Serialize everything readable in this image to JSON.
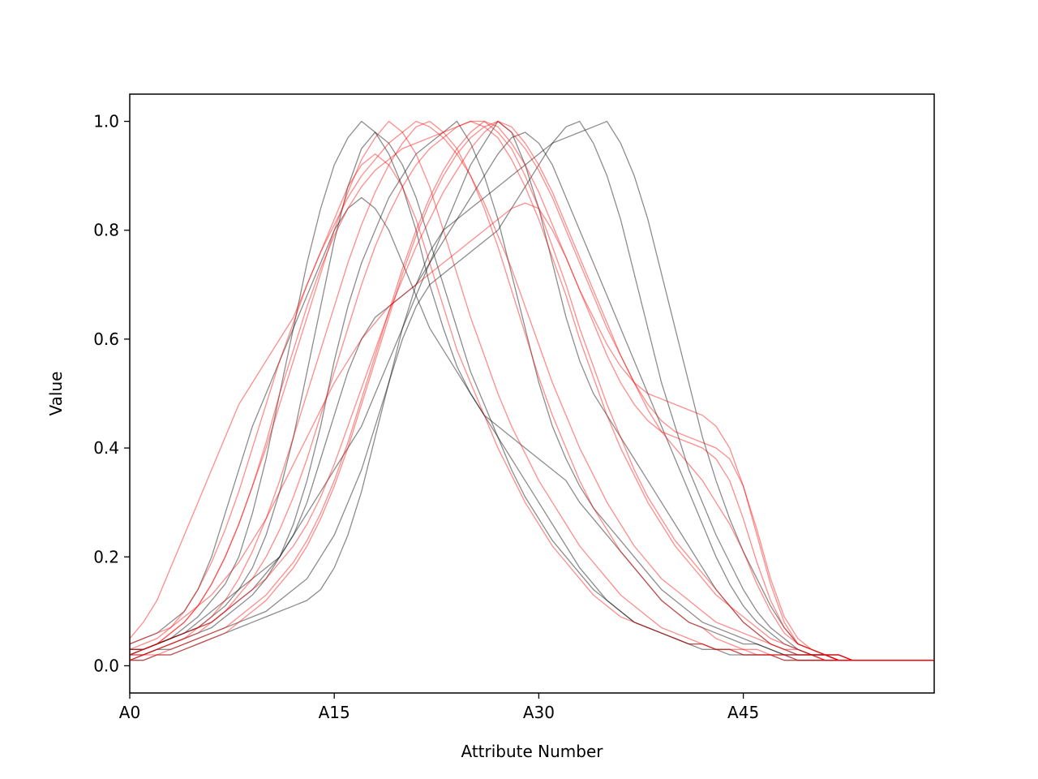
{
  "chart_data": {
    "type": "line",
    "title": "",
    "xlabel": "Attribute Number",
    "ylabel": "Value",
    "x_tick_labels": [
      "A0",
      "A15",
      "A30",
      "A45"
    ],
    "x_tick_positions": [
      0,
      15,
      30,
      45
    ],
    "y_tick_labels": [
      "0.0",
      "0.2",
      "0.4",
      "0.6",
      "0.8",
      "1.0"
    ],
    "y_tick_values": [
      0.0,
      0.2,
      0.4,
      0.6,
      0.8,
      1.0
    ],
    "xlim": [
      0,
      59
    ],
    "ylim": [
      -0.05,
      1.05
    ],
    "grid": false,
    "legend": false,
    "x": [
      0,
      1,
      2,
      3,
      4,
      5,
      6,
      7,
      8,
      9,
      10,
      11,
      12,
      13,
      14,
      15,
      16,
      17,
      18,
      19,
      20,
      21,
      22,
      23,
      24,
      25,
      26,
      27,
      28,
      29,
      30,
      31,
      32,
      33,
      34,
      35,
      36,
      37,
      38,
      39,
      40,
      41,
      42,
      43,
      44,
      45,
      46,
      47,
      48,
      49,
      50,
      51,
      52,
      53,
      54,
      55,
      56,
      57,
      58,
      59
    ],
    "series": [
      {
        "color": "#000000",
        "values": [
          0.02,
          0.03,
          0.04,
          0.05,
          0.07,
          0.09,
          0.12,
          0.15,
          0.2,
          0.28,
          0.38,
          0.5,
          0.62,
          0.74,
          0.84,
          0.92,
          0.97,
          1.0,
          0.98,
          0.94,
          0.88,
          0.8,
          0.7,
          0.62,
          0.55,
          0.5,
          0.46,
          0.44,
          0.42,
          0.4,
          0.38,
          0.36,
          0.34,
          0.3,
          0.27,
          0.24,
          0.21,
          0.18,
          0.15,
          0.12,
          0.1,
          0.08,
          0.07,
          0.06,
          0.05,
          0.04,
          0.04,
          0.03,
          0.02,
          0.02,
          0.02,
          0.02,
          0.01,
          0.01,
          0.01,
          0.01,
          0.01,
          0.01,
          0.01,
          0.01
        ]
      },
      {
        "color": "#000000",
        "values": [
          0.01,
          0.02,
          0.03,
          0.04,
          0.05,
          0.06,
          0.07,
          0.09,
          0.11,
          0.13,
          0.16,
          0.2,
          0.26,
          0.34,
          0.44,
          0.56,
          0.66,
          0.74,
          0.8,
          0.86,
          0.9,
          0.94,
          0.96,
          0.98,
          1.0,
          0.96,
          0.9,
          0.82,
          0.72,
          0.62,
          0.52,
          0.44,
          0.38,
          0.33,
          0.29,
          0.26,
          0.23,
          0.2,
          0.17,
          0.14,
          0.12,
          0.1,
          0.08,
          0.07,
          0.06,
          0.05,
          0.04,
          0.03,
          0.02,
          0.02,
          0.02,
          0.01,
          0.01,
          0.01,
          0.01,
          0.01,
          0.01,
          0.01,
          0.01,
          0.01
        ]
      },
      {
        "color": "#000000",
        "values": [
          0.03,
          0.03,
          0.04,
          0.05,
          0.06,
          0.08,
          0.1,
          0.12,
          0.14,
          0.16,
          0.18,
          0.2,
          0.24,
          0.3,
          0.38,
          0.46,
          0.54,
          0.6,
          0.64,
          0.66,
          0.68,
          0.7,
          0.74,
          0.78,
          0.82,
          0.86,
          0.9,
          0.94,
          0.97,
          0.98,
          0.96,
          0.92,
          0.86,
          0.8,
          0.74,
          0.68,
          0.62,
          0.56,
          0.5,
          0.44,
          0.38,
          0.32,
          0.26,
          0.2,
          0.15,
          0.11,
          0.08,
          0.06,
          0.04,
          0.03,
          0.02,
          0.02,
          0.02,
          0.01,
          0.01,
          0.01,
          0.01,
          0.01,
          0.01,
          0.01
        ]
      },
      {
        "color": "#000000",
        "values": [
          0.02,
          0.02,
          0.03,
          0.03,
          0.04,
          0.05,
          0.06,
          0.07,
          0.08,
          0.09,
          0.1,
          0.12,
          0.14,
          0.16,
          0.2,
          0.24,
          0.3,
          0.36,
          0.44,
          0.52,
          0.6,
          0.66,
          0.7,
          0.72,
          0.74,
          0.76,
          0.78,
          0.8,
          0.84,
          0.88,
          0.92,
          0.96,
          0.99,
          1.0,
          0.96,
          0.9,
          0.82,
          0.72,
          0.62,
          0.52,
          0.44,
          0.36,
          0.3,
          0.24,
          0.19,
          0.14,
          0.1,
          0.07,
          0.05,
          0.03,
          0.02,
          0.02,
          0.01,
          0.01,
          0.01,
          0.01,
          0.01,
          0.01,
          0.01,
          0.01
        ]
      },
      {
        "color": "#000000",
        "values": [
          0.04,
          0.05,
          0.06,
          0.08,
          0.1,
          0.14,
          0.2,
          0.28,
          0.36,
          0.44,
          0.5,
          0.56,
          0.62,
          0.68,
          0.74,
          0.8,
          0.84,
          0.86,
          0.84,
          0.8,
          0.74,
          0.68,
          0.62,
          0.58,
          0.54,
          0.5,
          0.46,
          0.42,
          0.38,
          0.34,
          0.3,
          0.26,
          0.22,
          0.18,
          0.15,
          0.12,
          0.1,
          0.08,
          0.07,
          0.06,
          0.05,
          0.04,
          0.04,
          0.03,
          0.03,
          0.02,
          0.02,
          0.02,
          0.02,
          0.01,
          0.01,
          0.01,
          0.01,
          0.01,
          0.01,
          0.01,
          0.01,
          0.01,
          0.01,
          0.01
        ]
      },
      {
        "color": "#000000",
        "values": [
          0.01,
          0.01,
          0.02,
          0.02,
          0.03,
          0.04,
          0.05,
          0.06,
          0.07,
          0.08,
          0.09,
          0.1,
          0.11,
          0.12,
          0.14,
          0.18,
          0.24,
          0.32,
          0.42,
          0.52,
          0.62,
          0.7,
          0.76,
          0.8,
          0.82,
          0.84,
          0.86,
          0.88,
          0.9,
          0.92,
          0.94,
          0.96,
          0.97,
          0.98,
          0.99,
          1.0,
          0.96,
          0.9,
          0.82,
          0.72,
          0.62,
          0.52,
          0.42,
          0.34,
          0.27,
          0.21,
          0.16,
          0.11,
          0.07,
          0.04,
          0.03,
          0.02,
          0.02,
          0.01,
          0.01,
          0.01,
          0.01,
          0.01,
          0.01,
          0.01
        ]
      },
      {
        "color": "#000000",
        "values": [
          0.02,
          0.03,
          0.04,
          0.05,
          0.06,
          0.07,
          0.09,
          0.11,
          0.14,
          0.18,
          0.24,
          0.32,
          0.42,
          0.54,
          0.66,
          0.78,
          0.88,
          0.95,
          0.98,
          0.96,
          0.92,
          0.86,
          0.78,
          0.7,
          0.62,
          0.54,
          0.48,
          0.42,
          0.36,
          0.31,
          0.27,
          0.23,
          0.2,
          0.17,
          0.14,
          0.12,
          0.1,
          0.08,
          0.07,
          0.06,
          0.05,
          0.04,
          0.03,
          0.03,
          0.02,
          0.02,
          0.02,
          0.02,
          0.01,
          0.01,
          0.01,
          0.01,
          0.01,
          0.01,
          0.01,
          0.01,
          0.01,
          0.01,
          0.01,
          0.01
        ]
      },
      {
        "color": "#000000",
        "values": [
          0.03,
          0.03,
          0.04,
          0.05,
          0.06,
          0.07,
          0.08,
          0.1,
          0.12,
          0.14,
          0.17,
          0.2,
          0.24,
          0.28,
          0.32,
          0.36,
          0.4,
          0.44,
          0.5,
          0.56,
          0.62,
          0.68,
          0.74,
          0.8,
          0.86,
          0.92,
          0.96,
          1.0,
          0.98,
          0.92,
          0.84,
          0.74,
          0.64,
          0.56,
          0.5,
          0.46,
          0.42,
          0.38,
          0.34,
          0.3,
          0.26,
          0.22,
          0.18,
          0.14,
          0.11,
          0.08,
          0.06,
          0.04,
          0.03,
          0.02,
          0.02,
          0.02,
          0.01,
          0.01,
          0.01,
          0.01,
          0.01,
          0.01,
          0.01,
          0.01
        ]
      },
      {
        "color": "#ff0000",
        "values": [
          0.05,
          0.08,
          0.12,
          0.18,
          0.24,
          0.3,
          0.36,
          0.42,
          0.48,
          0.52,
          0.56,
          0.6,
          0.64,
          0.7,
          0.76,
          0.82,
          0.88,
          0.92,
          0.94,
          0.92,
          0.88,
          0.82,
          0.74,
          0.66,
          0.58,
          0.52,
          0.46,
          0.4,
          0.35,
          0.3,
          0.26,
          0.22,
          0.19,
          0.16,
          0.13,
          0.11,
          0.09,
          0.08,
          0.07,
          0.06,
          0.05,
          0.04,
          0.04,
          0.03,
          0.03,
          0.03,
          0.02,
          0.02,
          0.02,
          0.02,
          0.02,
          0.01,
          0.01,
          0.01,
          0.01,
          0.01,
          0.01,
          0.01,
          0.01,
          0.01
        ]
      },
      {
        "color": "#ff0000",
        "values": [
          0.02,
          0.03,
          0.04,
          0.06,
          0.08,
          0.11,
          0.15,
          0.2,
          0.26,
          0.33,
          0.4,
          0.48,
          0.56,
          0.64,
          0.72,
          0.8,
          0.87,
          0.93,
          0.97,
          1.0,
          0.98,
          0.94,
          0.88,
          0.8,
          0.72,
          0.64,
          0.57,
          0.5,
          0.44,
          0.39,
          0.34,
          0.3,
          0.26,
          0.22,
          0.19,
          0.16,
          0.13,
          0.11,
          0.09,
          0.07,
          0.06,
          0.05,
          0.04,
          0.03,
          0.03,
          0.02,
          0.02,
          0.02,
          0.01,
          0.01,
          0.01,
          0.01,
          0.01,
          0.01,
          0.01,
          0.01,
          0.01,
          0.01,
          0.01,
          0.01
        ]
      },
      {
        "color": "#ff0000",
        "values": [
          0.01,
          0.02,
          0.03,
          0.04,
          0.05,
          0.07,
          0.09,
          0.12,
          0.16,
          0.21,
          0.27,
          0.34,
          0.42,
          0.5,
          0.58,
          0.66,
          0.74,
          0.81,
          0.87,
          0.92,
          0.96,
          0.99,
          1.0,
          0.98,
          0.95,
          0.9,
          0.84,
          0.77,
          0.69,
          0.61,
          0.53,
          0.46,
          0.4,
          0.34,
          0.29,
          0.25,
          0.21,
          0.18,
          0.15,
          0.12,
          0.1,
          0.08,
          0.07,
          0.05,
          0.04,
          0.03,
          0.03,
          0.02,
          0.02,
          0.01,
          0.01,
          0.01,
          0.01,
          0.01,
          0.01,
          0.01,
          0.01,
          0.01,
          0.01,
          0.01
        ]
      },
      {
        "color": "#ff0000",
        "values": [
          0.02,
          0.02,
          0.03,
          0.04,
          0.05,
          0.06,
          0.08,
          0.1,
          0.13,
          0.16,
          0.2,
          0.25,
          0.31,
          0.38,
          0.46,
          0.54,
          0.62,
          0.7,
          0.77,
          0.83,
          0.88,
          0.92,
          0.95,
          0.97,
          0.99,
          1.0,
          1.0,
          0.98,
          0.95,
          0.9,
          0.84,
          0.77,
          0.7,
          0.62,
          0.55,
          0.48,
          0.42,
          0.36,
          0.31,
          0.27,
          0.23,
          0.2,
          0.17,
          0.14,
          0.11,
          0.08,
          0.06,
          0.04,
          0.03,
          0.02,
          0.02,
          0.01,
          0.01,
          0.01,
          0.01,
          0.01,
          0.01,
          0.01,
          0.01,
          0.01
        ]
      },
      {
        "color": "#ff0000",
        "values": [
          0.03,
          0.03,
          0.04,
          0.05,
          0.06,
          0.07,
          0.08,
          0.1,
          0.12,
          0.14,
          0.16,
          0.19,
          0.22,
          0.26,
          0.31,
          0.37,
          0.44,
          0.51,
          0.58,
          0.65,
          0.71,
          0.77,
          0.82,
          0.87,
          0.91,
          0.95,
          0.98,
          1.0,
          0.99,
          0.96,
          0.92,
          0.87,
          0.81,
          0.75,
          0.69,
          0.63,
          0.57,
          0.52,
          0.47,
          0.43,
          0.4,
          0.37,
          0.34,
          0.3,
          0.26,
          0.21,
          0.15,
          0.1,
          0.06,
          0.04,
          0.03,
          0.02,
          0.02,
          0.01,
          0.01,
          0.01,
          0.01,
          0.01,
          0.01,
          0.01
        ]
      },
      {
        "color": "#ff0000",
        "values": [
          0.04,
          0.05,
          0.06,
          0.07,
          0.09,
          0.11,
          0.13,
          0.16,
          0.19,
          0.23,
          0.27,
          0.32,
          0.37,
          0.42,
          0.47,
          0.52,
          0.56,
          0.6,
          0.63,
          0.66,
          0.68,
          0.7,
          0.72,
          0.74,
          0.76,
          0.78,
          0.8,
          0.82,
          0.84,
          0.85,
          0.84,
          0.8,
          0.75,
          0.69,
          0.63,
          0.57,
          0.52,
          0.48,
          0.45,
          0.43,
          0.42,
          0.41,
          0.4,
          0.38,
          0.34,
          0.27,
          0.19,
          0.12,
          0.07,
          0.04,
          0.03,
          0.02,
          0.02,
          0.01,
          0.01,
          0.01,
          0.01,
          0.01,
          0.01,
          0.01
        ]
      },
      {
        "color": "#ff0000",
        "values": [
          0.01,
          0.01,
          0.02,
          0.02,
          0.03,
          0.04,
          0.05,
          0.06,
          0.08,
          0.1,
          0.12,
          0.15,
          0.18,
          0.22,
          0.27,
          0.33,
          0.4,
          0.48,
          0.56,
          0.64,
          0.72,
          0.79,
          0.85,
          0.9,
          0.94,
          0.97,
          0.99,
          1.0,
          0.98,
          0.95,
          0.91,
          0.86,
          0.8,
          0.74,
          0.68,
          0.62,
          0.57,
          0.52,
          0.48,
          0.45,
          0.43,
          0.42,
          0.41,
          0.4,
          0.38,
          0.33,
          0.25,
          0.16,
          0.09,
          0.05,
          0.03,
          0.02,
          0.02,
          0.01,
          0.01,
          0.01,
          0.01,
          0.01,
          0.01,
          0.01
        ]
      },
      {
        "color": "#ff0000",
        "values": [
          0.02,
          0.03,
          0.04,
          0.06,
          0.08,
          0.11,
          0.15,
          0.2,
          0.26,
          0.33,
          0.41,
          0.5,
          0.58,
          0.66,
          0.73,
          0.79,
          0.84,
          0.88,
          0.91,
          0.93,
          0.95,
          0.96,
          0.97,
          0.98,
          0.99,
          1.0,
          0.99,
          0.97,
          0.93,
          0.88,
          0.82,
          0.75,
          0.68,
          0.6,
          0.53,
          0.46,
          0.4,
          0.35,
          0.3,
          0.26,
          0.22,
          0.19,
          0.16,
          0.13,
          0.11,
          0.09,
          0.07,
          0.05,
          0.04,
          0.03,
          0.02,
          0.02,
          0.01,
          0.01,
          0.01,
          0.01,
          0.01,
          0.01,
          0.01,
          0.01
        ]
      },
      {
        "color": "#ff0000",
        "values": [
          0.01,
          0.02,
          0.02,
          0.03,
          0.04,
          0.05,
          0.06,
          0.07,
          0.09,
          0.11,
          0.13,
          0.16,
          0.19,
          0.23,
          0.28,
          0.34,
          0.41,
          0.49,
          0.57,
          0.65,
          0.73,
          0.8,
          0.86,
          0.91,
          0.95,
          0.98,
          1.0,
          0.99,
          0.96,
          0.92,
          0.87,
          0.81,
          0.75,
          0.69,
          0.64,
          0.59,
          0.55,
          0.52,
          0.5,
          0.49,
          0.48,
          0.47,
          0.46,
          0.44,
          0.4,
          0.33,
          0.24,
          0.15,
          0.08,
          0.04,
          0.03,
          0.02,
          0.01,
          0.01,
          0.01,
          0.01,
          0.01,
          0.01,
          0.01,
          0.01
        ]
      },
      {
        "color": "#ff0000",
        "values": [
          0.03,
          0.04,
          0.05,
          0.07,
          0.1,
          0.14,
          0.19,
          0.25,
          0.32,
          0.4,
          0.48,
          0.56,
          0.63,
          0.7,
          0.76,
          0.81,
          0.86,
          0.9,
          0.93,
          0.96,
          0.98,
          1.0,
          0.99,
          0.97,
          0.94,
          0.9,
          0.85,
          0.79,
          0.73,
          0.66,
          0.59,
          0.52,
          0.46,
          0.4,
          0.35,
          0.3,
          0.26,
          0.22,
          0.19,
          0.16,
          0.14,
          0.12,
          0.1,
          0.08,
          0.07,
          0.06,
          0.05,
          0.04,
          0.03,
          0.03,
          0.02,
          0.02,
          0.01,
          0.01,
          0.01,
          0.01,
          0.01,
          0.01,
          0.01,
          0.01
        ]
      }
    ]
  }
}
